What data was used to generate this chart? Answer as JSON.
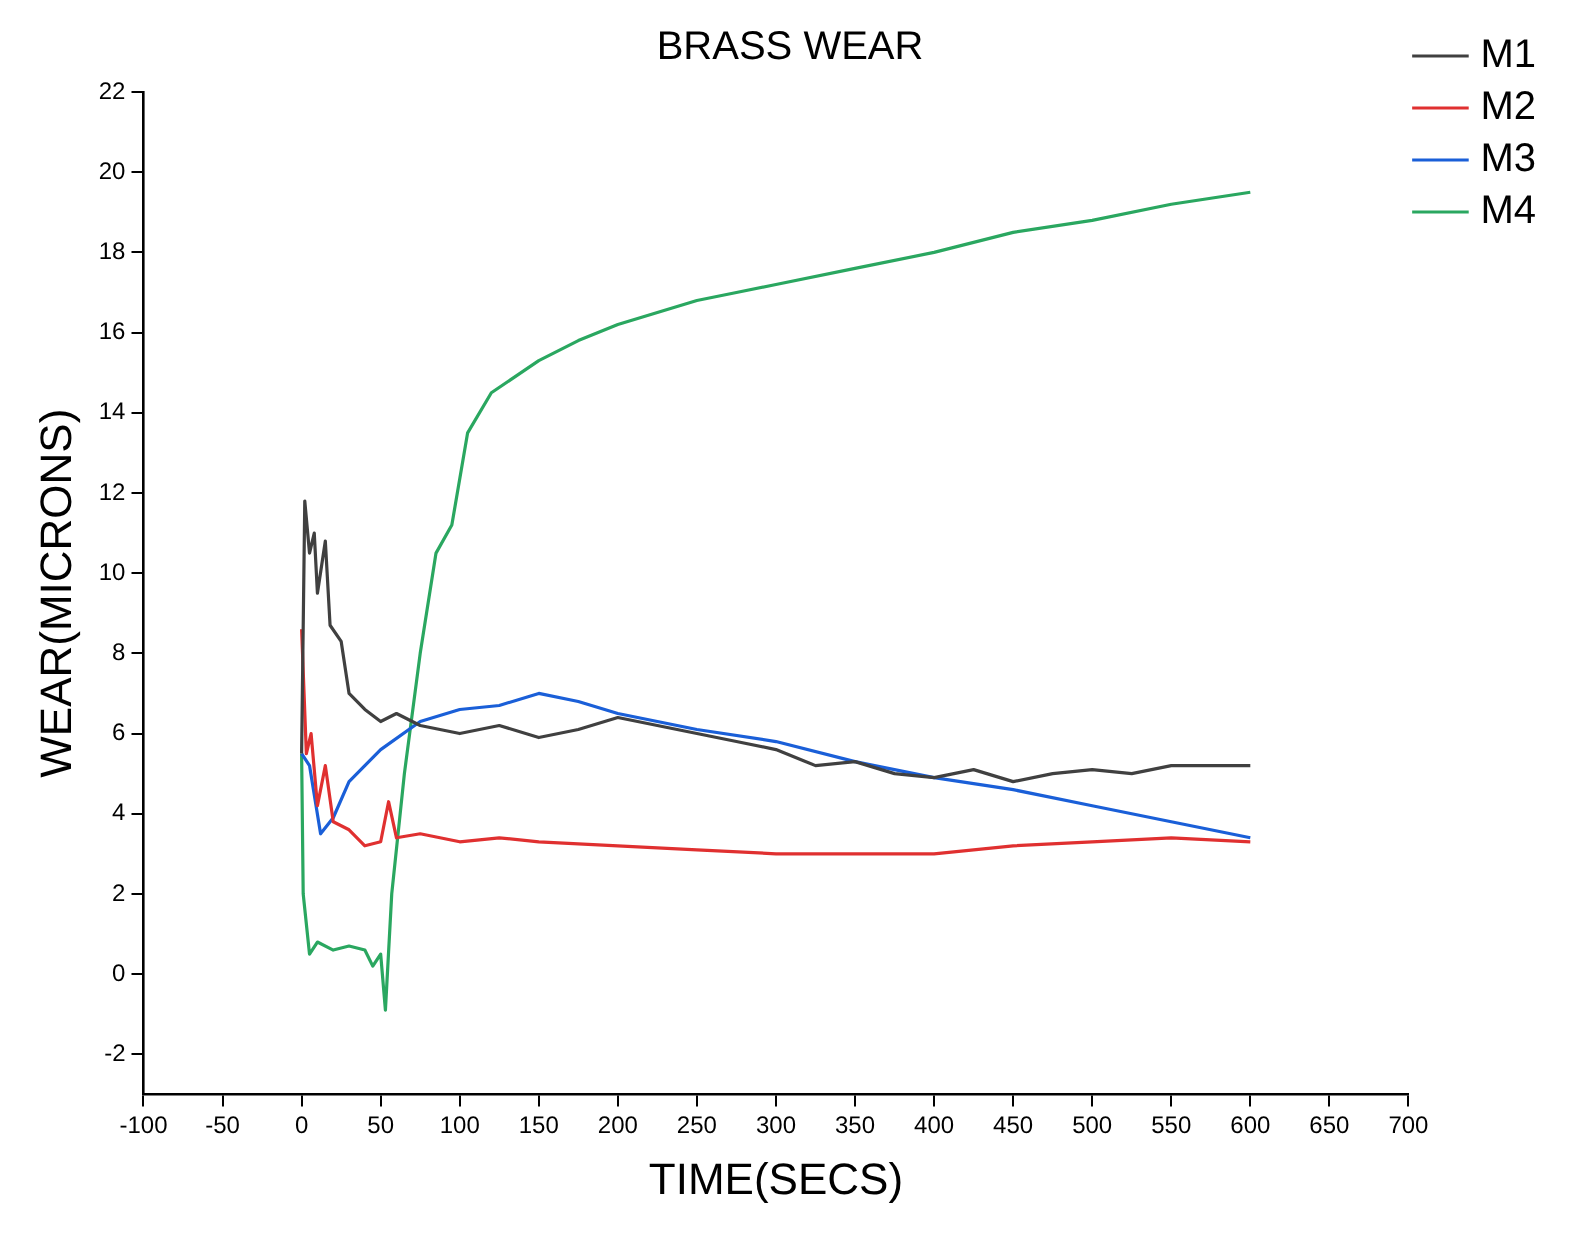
{
  "chart_data": {
    "type": "line",
    "title": "BRASS WEAR",
    "xlabel": "TIME(SECS)",
    "ylabel": "WEAR(MICRONS)",
    "xlim": [
      -100,
      700
    ],
    "xticks": [
      -100,
      -50,
      0,
      50,
      100,
      150,
      200,
      250,
      300,
      350,
      400,
      450,
      500,
      550,
      600,
      650,
      700
    ],
    "ylim": [
      -3,
      22
    ],
    "yticks": [
      -2,
      0,
      2,
      4,
      6,
      8,
      10,
      12,
      14,
      16,
      18,
      20,
      22
    ],
    "grid": false,
    "legend": "top right",
    "marker": "none",
    "line_style": "solid",
    "series": [
      {
        "name": "M1",
        "color": "#404040",
        "x": [
          0,
          2,
          5,
          8,
          10,
          15,
          18,
          25,
          30,
          40,
          50,
          60,
          75,
          100,
          125,
          150,
          175,
          200,
          225,
          250,
          275,
          300,
          325,
          350,
          375,
          400,
          425,
          450,
          475,
          500,
          525,
          550,
          575,
          600
        ],
        "values": [
          5.5,
          11.8,
          10.5,
          11,
          9.5,
          10.8,
          8.7,
          8.3,
          7,
          6.6,
          6.3,
          6.5,
          6.2,
          6,
          6.2,
          5.9,
          6.1,
          6.4,
          6.2,
          6,
          5.8,
          5.6,
          5.2,
          5.3,
          5,
          4.9,
          5.1,
          4.8,
          5,
          5.1,
          5,
          5.2,
          5.2,
          5.2
        ]
      },
      {
        "name": "M2",
        "color": "#e03030",
        "x": [
          0,
          3,
          6,
          10,
          15,
          20,
          30,
          40,
          50,
          55,
          60,
          75,
          100,
          125,
          150,
          200,
          250,
          300,
          350,
          400,
          450,
          500,
          550,
          600
        ],
        "values": [
          8.6,
          5.5,
          6,
          4.2,
          5.2,
          3.8,
          3.6,
          3.2,
          3.3,
          4.3,
          3.4,
          3.5,
          3.3,
          3.4,
          3.3,
          3.2,
          3.1,
          3,
          3,
          3,
          3.2,
          3.3,
          3.4,
          3.3
        ]
      },
      {
        "name": "M3",
        "color": "#1a5fd8",
        "x": [
          0,
          5,
          12,
          20,
          30,
          50,
          75,
          100,
          125,
          150,
          175,
          200,
          250,
          300,
          350,
          400,
          450,
          500,
          550,
          600
        ],
        "values": [
          5.5,
          5.2,
          3.5,
          3.9,
          4.8,
          5.6,
          6.3,
          6.6,
          6.7,
          7,
          6.8,
          6.5,
          6.1,
          5.8,
          5.3,
          4.9,
          4.6,
          4.2,
          3.8,
          3.4
        ]
      },
      {
        "name": "M4",
        "color": "#2aa760",
        "x": [
          0,
          1,
          5,
          10,
          20,
          30,
          40,
          45,
          50,
          53,
          57,
          65,
          75,
          85,
          95,
          105,
          120,
          150,
          175,
          200,
          225,
          250,
          275,
          300,
          350,
          400,
          450,
          500,
          550,
          600
        ],
        "values": [
          5.5,
          2,
          0.5,
          0.8,
          0.6,
          0.7,
          0.6,
          0.2,
          0.5,
          -0.9,
          2,
          5,
          8,
          10.5,
          11.2,
          13.5,
          14.5,
          15.3,
          15.8,
          16.2,
          16.5,
          16.8,
          17,
          17.2,
          17.6,
          18,
          18.5,
          18.8,
          19.2,
          19.5
        ]
      }
    ]
  }
}
